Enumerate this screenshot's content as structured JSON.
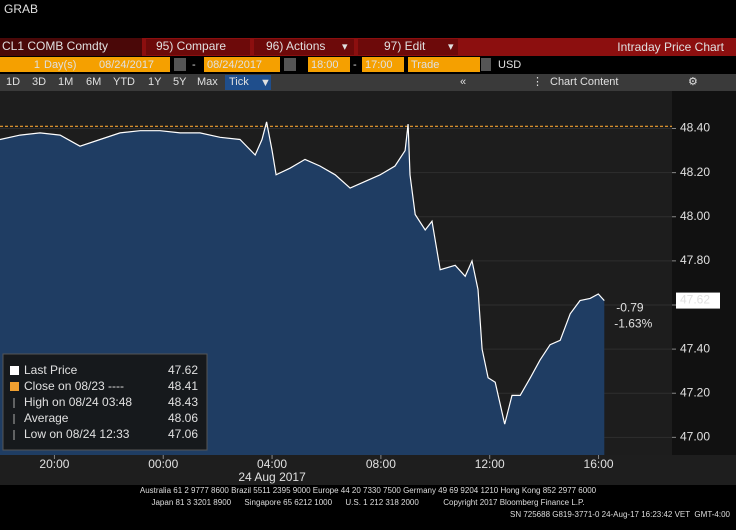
{
  "window_title": "GRAB",
  "toolbar": {
    "ticker": "CL1 COMB Comdty",
    "menu": [
      "95) Compare",
      "96) Actions",
      "97) Edit"
    ],
    "panel_title": "Intraday Price Chart"
  },
  "range": {
    "days": "1",
    "days_unit": "Day(s)",
    "start_date": "08/24/2017",
    "separator": "-",
    "end_date": "08/24/2017",
    "start_time": "18:00",
    "end_time": "17:00",
    "field": "Trade",
    "currency": "USD"
  },
  "periods": [
    "1D",
    "3D",
    "1M",
    "6M",
    "YTD",
    "1Y",
    "5Y",
    "Max",
    "Tick"
  ],
  "chart_content": "Chart Content",
  "chart_data": {
    "type": "line",
    "x": [
      18.0,
      18.74,
      19.47,
      20.21,
      20.94,
      21.68,
      22.41,
      23.15,
      23.88,
      24.62,
      25.35,
      26.09,
      26.82,
      27.38,
      27.63,
      27.8,
      28.0,
      28.15,
      28.66,
      29.21,
      29.76,
      30.32,
      30.87,
      31.42,
      31.97,
      32.52,
      32.89,
      33.0,
      33.07,
      33.26,
      33.63,
      33.88,
      34.18,
      34.73,
      35.1,
      35.35,
      35.57,
      35.72,
      35.94,
      36.2,
      36.55,
      36.82,
      37.12,
      37.49,
      37.85,
      38.22,
      38.59,
      38.96,
      39.32,
      39.69,
      39.99,
      40.21
    ],
    "series": [
      {
        "name": "Last Price",
        "color": "#ffffff",
        "area_color": "#1f3d63",
        "values": [
          48.35,
          48.37,
          48.38,
          48.37,
          48.32,
          48.35,
          48.38,
          48.39,
          48.39,
          48.38,
          48.38,
          48.36,
          48.35,
          48.28,
          48.35,
          48.43,
          48.3,
          48.19,
          48.22,
          48.26,
          48.23,
          48.19,
          48.13,
          48.16,
          48.19,
          48.23,
          48.3,
          48.42,
          48.19,
          48.01,
          47.94,
          47.98,
          47.76,
          47.78,
          47.73,
          47.8,
          47.67,
          47.4,
          47.27,
          47.25,
          47.06,
          47.19,
          47.19,
          47.27,
          47.35,
          47.42,
          47.44,
          47.56,
          47.62,
          47.63,
          47.65,
          47.62
        ]
      }
    ],
    "xlim": [
      18,
      42.7
    ],
    "xticks": [
      {
        "value": 20,
        "label": "20:00"
      },
      {
        "value": 24,
        "label": "00:00"
      },
      {
        "value": 28,
        "label": "04:00"
      },
      {
        "value": 32,
        "label": "08:00"
      },
      {
        "value": 36,
        "label": "12:00"
      },
      {
        "value": 40,
        "label": "16:00"
      }
    ],
    "date_label": "24 Aug 2017",
    "ylim": [
      46.92,
      48.57
    ],
    "yticks": [
      {
        "value": 47.0,
        "label": "47.00"
      },
      {
        "value": 47.2,
        "label": "47.20"
      },
      {
        "value": 47.4,
        "label": "47.40"
      },
      {
        "value": 47.6,
        "label": "47.60"
      },
      {
        "value": 47.8,
        "label": "47.80"
      },
      {
        "value": 48.0,
        "label": "48.00"
      },
      {
        "value": 48.2,
        "label": "48.20"
      },
      {
        "value": 48.4,
        "label": "48.40"
      }
    ],
    "grid": true,
    "stats": [
      {
        "label": "Close on 08/23 ----",
        "value": 48.41,
        "color": "#f0a030"
      },
      {
        "label": "High on 08/24 03:48",
        "value": 48.43
      },
      {
        "label": "Average",
        "value": 48.06
      },
      {
        "label": "Low on 08/24 12:33",
        "value": 47.06
      }
    ],
    "change": -0.79,
    "change_pct": {
      "value": -1.63,
      "label": "-1.63%"
    },
    "change_color": "#f0a030"
  },
  "footer": [
    "Australia 61 2 9777 8600 Brazil 5511 2395 9000 Europe 44 20 7330 7500 Germany 49 69 9204 1210 Hong Kong 852 2977 6000",
    "Japan 81 3 3201 8900      Singapore 65 6212 1000      U.S. 1 212 318 2000           Copyright 2017 Bloomberg Finance L.P.",
    "SN 725688 G819-3771-0 24-Aug-17 16:23:42 VET  GMT-4:00"
  ]
}
